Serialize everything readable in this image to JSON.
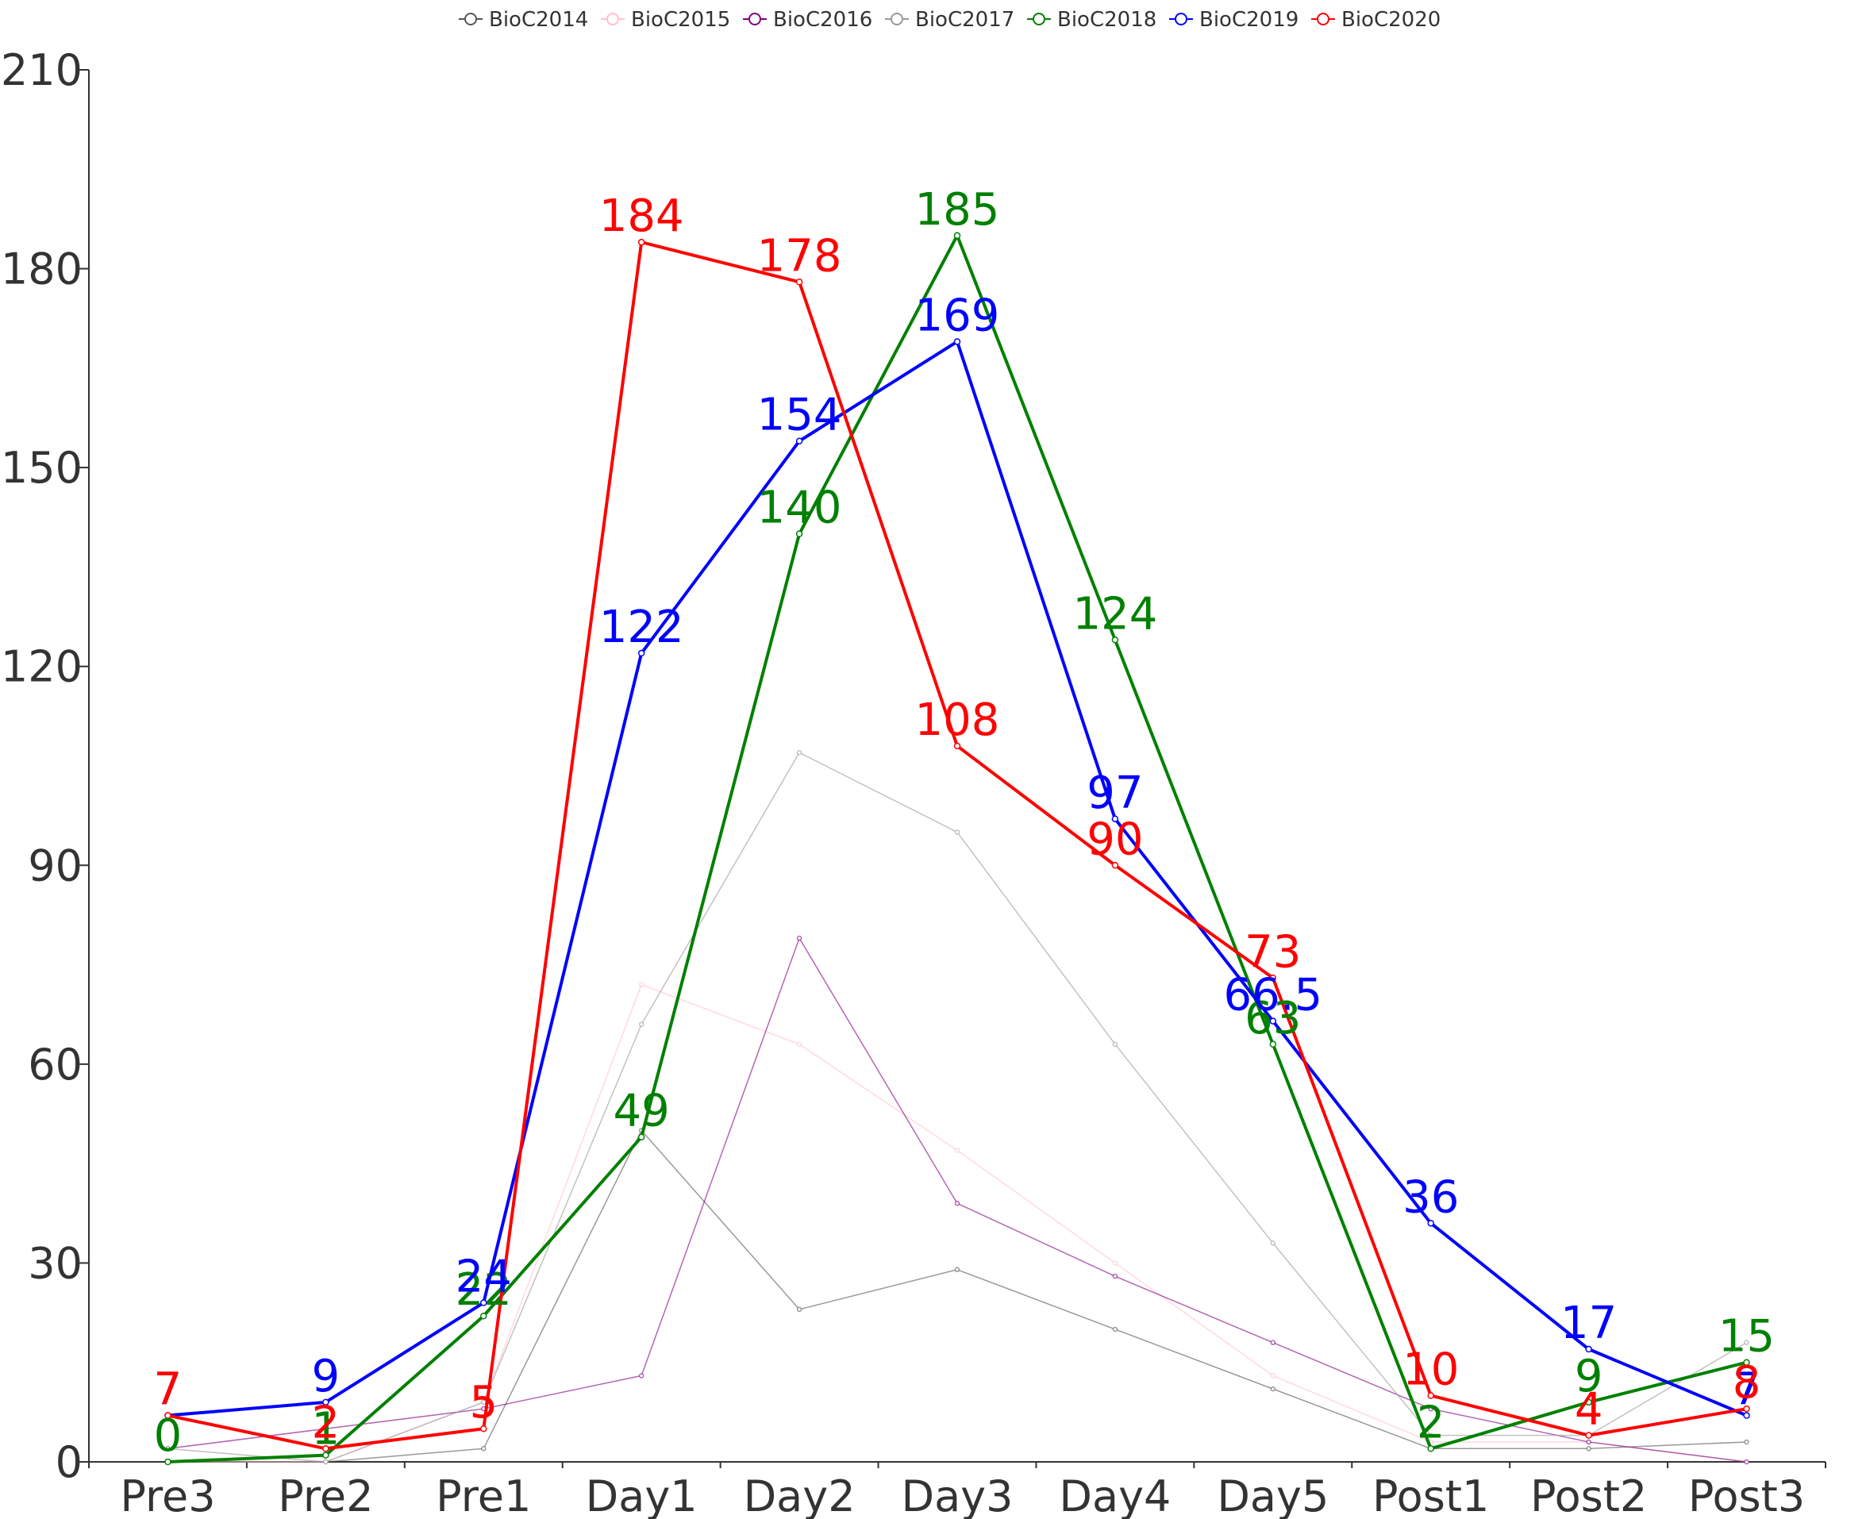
{
  "chart_data": {
    "type": "line",
    "title": "",
    "xlabel": "",
    "ylabel": "",
    "categories": [
      "Pre3",
      "Pre2",
      "Pre1",
      "Day1",
      "Day2",
      "Day3",
      "Day4",
      "Day5",
      "Post1",
      "Post2",
      "Post3"
    ],
    "ylim": [
      0,
      210
    ],
    "yticks": [
      0,
      30,
      60,
      90,
      120,
      150,
      180,
      210
    ],
    "grid": false,
    "legend_position": "top-center",
    "series": [
      {
        "name": "BioC2014",
        "color": "#555555",
        "emphasis": false,
        "values": [
          0,
          0,
          2,
          50,
          23,
          29,
          20,
          11,
          2,
          2,
          3
        ]
      },
      {
        "name": "BioC2015",
        "color": "#ffc0cb",
        "emphasis": false,
        "values": [
          0,
          0,
          9,
          72,
          63,
          47,
          30,
          13,
          3,
          3,
          0
        ]
      },
      {
        "name": "BioC2016",
        "color": "#800080",
        "emphasis": false,
        "values": [
          2,
          5,
          8,
          13,
          79,
          39,
          28,
          18,
          8,
          3,
          0
        ]
      },
      {
        "name": "BioC2017",
        "color": "#999999",
        "emphasis": false,
        "values": [
          2,
          0,
          9,
          66,
          107,
          95,
          63,
          33,
          4,
          4,
          18
        ]
      },
      {
        "name": "BioC2018",
        "color": "#008000",
        "emphasis": true,
        "values": [
          0,
          1,
          22,
          49,
          140,
          185,
          124,
          63,
          2,
          9,
          15
        ]
      },
      {
        "name": "BioC2019",
        "color": "#0000ff",
        "emphasis": true,
        "values": [
          7,
          9,
          24,
          122,
          154,
          169,
          97,
          66.5,
          36,
          17,
          7
        ]
      },
      {
        "name": "BioC2020",
        "color": "#ff0000",
        "emphasis": true,
        "values": [
          7,
          2,
          5,
          184,
          178,
          108,
          90,
          73,
          10,
          4,
          8
        ]
      }
    ]
  }
}
